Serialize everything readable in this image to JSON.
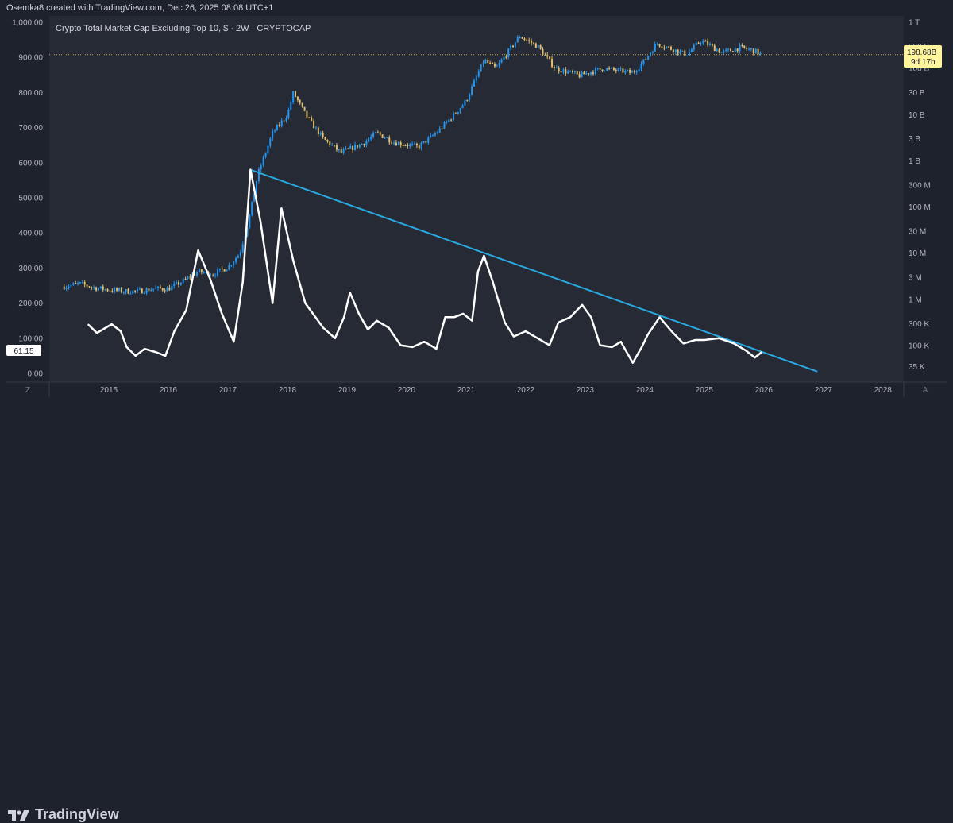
{
  "header": {
    "attribution": "Osemka8 created with TradingView.com, Dec 26, 2025 08:08 UTC+1"
  },
  "footer": {
    "brand": "TradingView"
  },
  "chart_data": {
    "type": "line",
    "title": "Crypto Total Market Cap Excluding Top 10, $ · 2W · CRYPTOCAP",
    "x_range": [
      2014.0,
      2028.35
    ],
    "x_ticks": [
      "2015",
      "2016",
      "2017",
      "2018",
      "2019",
      "2020",
      "2021",
      "2022",
      "2023",
      "2024",
      "2025",
      "2026",
      "2027",
      "2028"
    ],
    "left_axis": {
      "range": [
        0,
        1000
      ],
      "ticks": [
        "1,000.00",
        "900.00",
        "800.00",
        "700.00",
        "600.00",
        "500.00",
        "400.00",
        "300.00",
        "200.00",
        "100.00",
        "0.00"
      ]
    },
    "right_axis": {
      "scale": "log",
      "range_usd": [
        25000,
        1000000000000
      ],
      "ticks": [
        "1 T",
        "300 B",
        "100 B",
        "30 B",
        "10 B",
        "3 B",
        "1 B",
        "300 M",
        "100 M",
        "30 M",
        "10 M",
        "3 M",
        "1 M",
        "300 K",
        "100 K",
        "35 K"
      ]
    },
    "current_value": {
      "label": "198.68B",
      "countdown": "9d 17h",
      "price_usd": 198680000000
    },
    "oscillator_current": {
      "label": "61.15",
      "value": 61.15
    },
    "corner_labels": {
      "left": "Z",
      "right": "A"
    },
    "colors": {
      "up_candle": "#2196f3",
      "down_candle": "#e0c070",
      "oscillator": "#ffffff",
      "trendline": "#29a9e0",
      "price_line": "#c9a85a",
      "price_tag_bg": "#fff59d"
    },
    "series": [
      {
        "name": "Crypto Total Market Cap Excluding Top 10",
        "axis": "right",
        "type": "candlestick",
        "approx_close_usd": [
          [
            2014.25,
            1900000
          ],
          [
            2014.5,
            2200000
          ],
          [
            2014.75,
            1800000
          ],
          [
            2015.0,
            1600000
          ],
          [
            2015.25,
            1500000
          ],
          [
            2015.5,
            1500000
          ],
          [
            2015.75,
            1700000
          ],
          [
            2016.0,
            1700000
          ],
          [
            2016.25,
            2500000
          ],
          [
            2016.5,
            4000000
          ],
          [
            2016.75,
            3500000
          ],
          [
            2017.0,
            5000000
          ],
          [
            2017.2,
            10000000
          ],
          [
            2017.35,
            50000000
          ],
          [
            2017.5,
            500000000
          ],
          [
            2017.75,
            4000000000
          ],
          [
            2018.0,
            10000000000
          ],
          [
            2018.1,
            30000000000
          ],
          [
            2018.3,
            10000000000
          ],
          [
            2018.6,
            3000000000
          ],
          [
            2018.9,
            1500000000
          ],
          [
            2019.3,
            2500000000
          ],
          [
            2019.5,
            4000000000
          ],
          [
            2019.8,
            2500000000
          ],
          [
            2020.2,
            2000000000
          ],
          [
            2020.5,
            4000000000
          ],
          [
            2020.8,
            10000000000
          ],
          [
            2021.0,
            20000000000
          ],
          [
            2021.3,
            150000000000
          ],
          [
            2021.5,
            100000000000
          ],
          [
            2021.9,
            500000000000
          ],
          [
            2022.2,
            300000000000
          ],
          [
            2022.5,
            100000000000
          ],
          [
            2022.9,
            70000000000
          ],
          [
            2023.3,
            100000000000
          ],
          [
            2023.8,
            80000000000
          ],
          [
            2024.0,
            150000000000
          ],
          [
            2024.2,
            350000000000
          ],
          [
            2024.7,
            200000000000
          ],
          [
            2024.95,
            400000000000
          ],
          [
            2025.3,
            220000000000
          ],
          [
            2025.6,
            280000000000
          ],
          [
            2025.8,
            250000000000
          ],
          [
            2025.97,
            198680000000
          ]
        ]
      },
      {
        "name": "Oscillator",
        "axis": "left",
        "type": "line",
        "points": [
          [
            2014.65,
            140
          ],
          [
            2014.8,
            115
          ],
          [
            2014.95,
            130
          ],
          [
            2015.05,
            140
          ],
          [
            2015.2,
            120
          ],
          [
            2015.3,
            75
          ],
          [
            2015.45,
            50
          ],
          [
            2015.6,
            70
          ],
          [
            2015.8,
            60
          ],
          [
            2015.95,
            50
          ],
          [
            2016.1,
            120
          ],
          [
            2016.3,
            180
          ],
          [
            2016.5,
            350
          ],
          [
            2016.7,
            270
          ],
          [
            2016.9,
            170
          ],
          [
            2017.1,
            90
          ],
          [
            2017.25,
            260
          ],
          [
            2017.38,
            580
          ],
          [
            2017.55,
            430
          ],
          [
            2017.75,
            200
          ],
          [
            2017.9,
            470
          ],
          [
            2018.1,
            320
          ],
          [
            2018.3,
            200
          ],
          [
            2018.6,
            130
          ],
          [
            2018.8,
            100
          ],
          [
            2018.95,
            160
          ],
          [
            2019.05,
            230
          ],
          [
            2019.2,
            170
          ],
          [
            2019.35,
            125
          ],
          [
            2019.5,
            150
          ],
          [
            2019.7,
            130
          ],
          [
            2019.9,
            80
          ],
          [
            2020.1,
            75
          ],
          [
            2020.3,
            90
          ],
          [
            2020.5,
            70
          ],
          [
            2020.65,
            160
          ],
          [
            2020.8,
            160
          ],
          [
            2020.95,
            170
          ],
          [
            2021.1,
            150
          ],
          [
            2021.2,
            290
          ],
          [
            2021.3,
            335
          ],
          [
            2021.45,
            260
          ],
          [
            2021.65,
            145
          ],
          [
            2021.8,
            105
          ],
          [
            2022.0,
            120
          ],
          [
            2022.2,
            100
          ],
          [
            2022.4,
            80
          ],
          [
            2022.55,
            145
          ],
          [
            2022.75,
            160
          ],
          [
            2022.95,
            195
          ],
          [
            2023.1,
            160
          ],
          [
            2023.25,
            80
          ],
          [
            2023.45,
            75
          ],
          [
            2023.6,
            90
          ],
          [
            2023.8,
            30
          ],
          [
            2023.95,
            75
          ],
          [
            2024.05,
            110
          ],
          [
            2024.25,
            160
          ],
          [
            2024.45,
            120
          ],
          [
            2024.65,
            85
          ],
          [
            2024.85,
            95
          ],
          [
            2025.0,
            95
          ],
          [
            2025.25,
            100
          ],
          [
            2025.5,
            85
          ],
          [
            2025.7,
            65
          ],
          [
            2025.85,
            45
          ],
          [
            2025.97,
            61.15
          ]
        ]
      },
      {
        "name": "Trendline",
        "axis": "left",
        "type": "line",
        "points": [
          [
            2017.38,
            580
          ],
          [
            2026.9,
            5
          ]
        ]
      }
    ],
    "grid": false,
    "legend": "none"
  }
}
